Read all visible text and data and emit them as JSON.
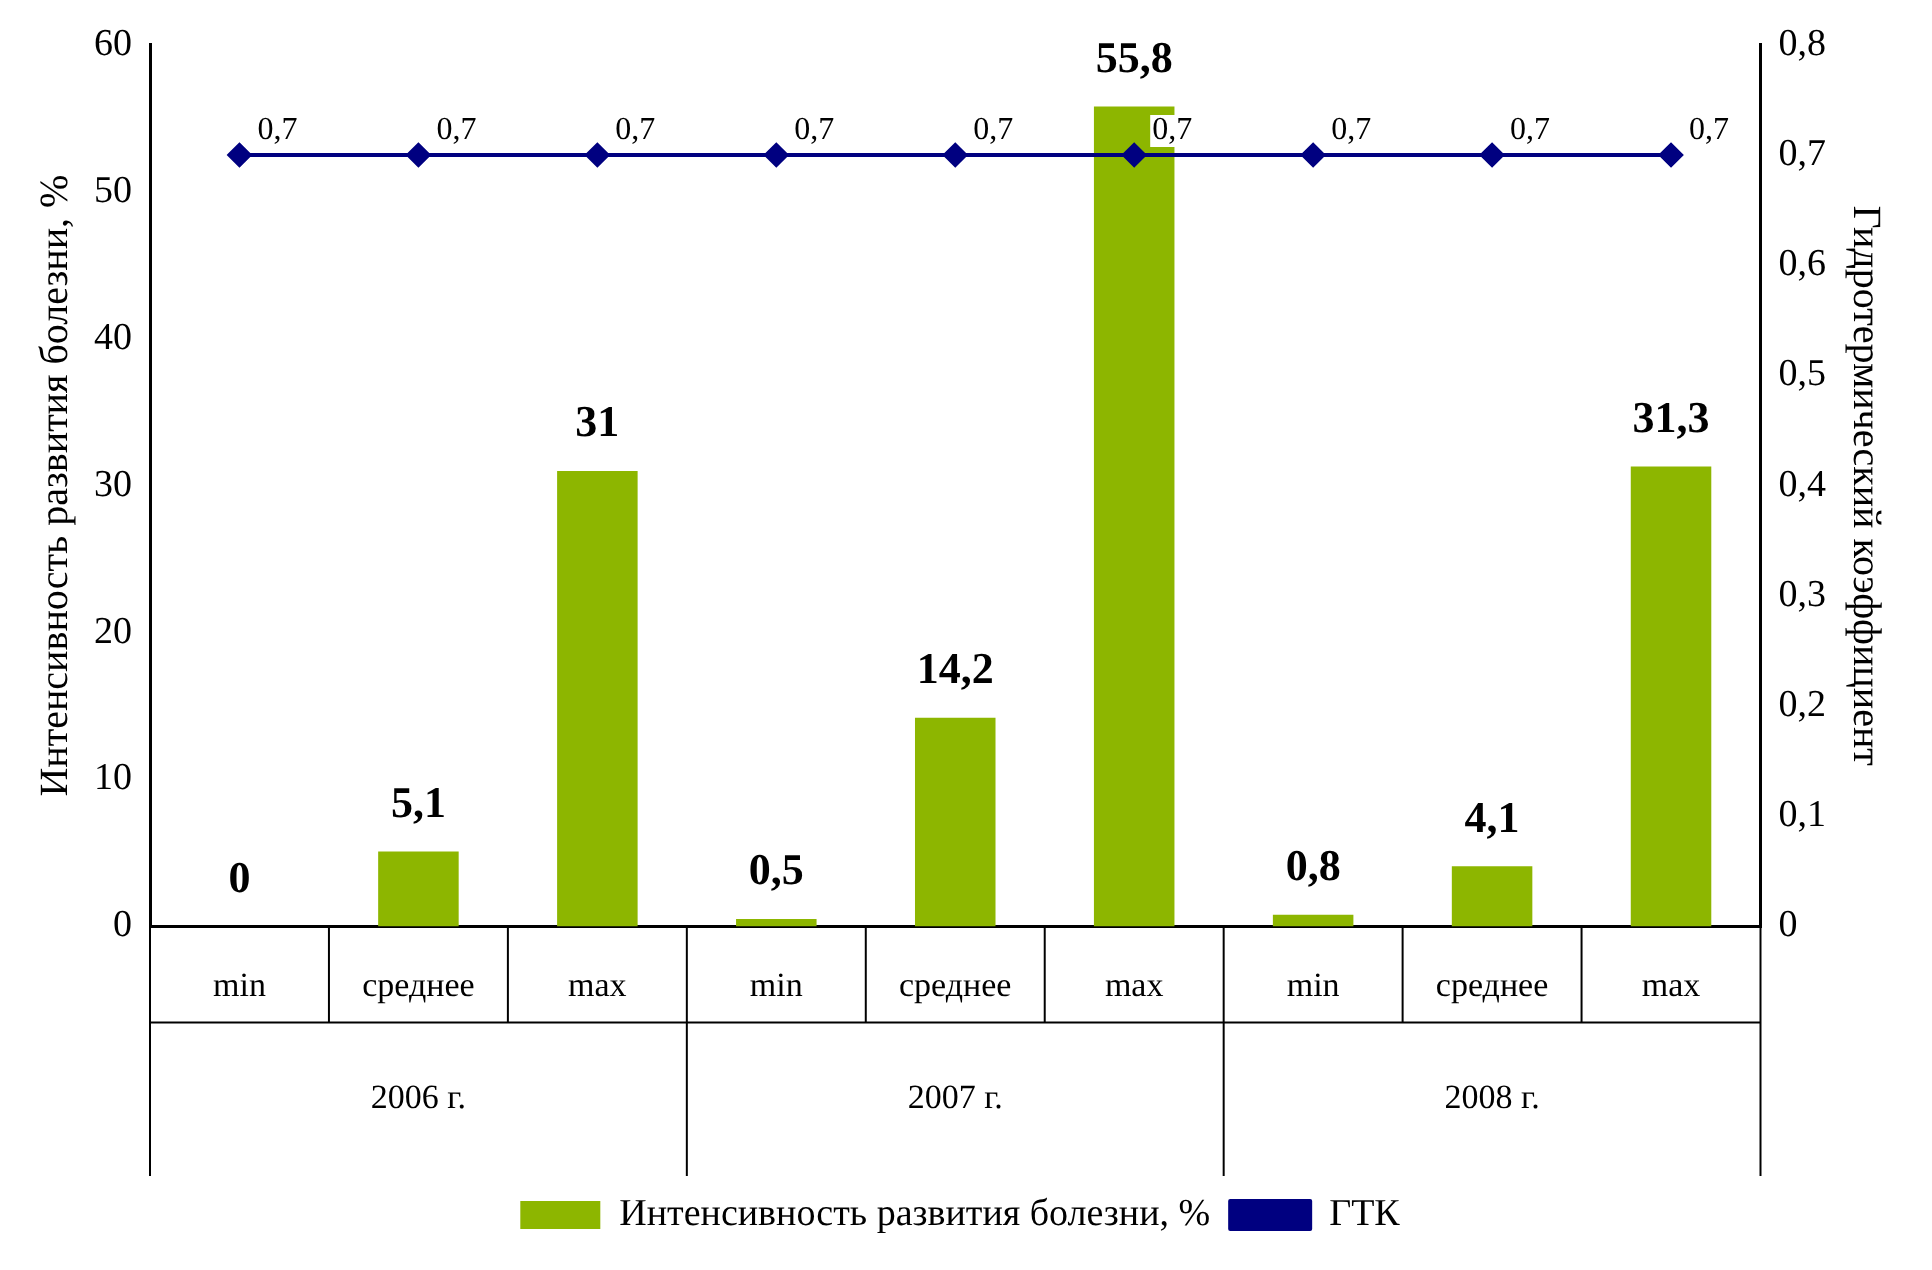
{
  "chart_data": {
    "type": "bar",
    "ylabel": "Интенсивность развития болезни, %",
    "y2label": "Гидротермический коэффициент",
    "categories": [
      "min",
      "среднее",
      "max",
      "min",
      "среднее",
      "max",
      "min",
      "среднее",
      "max"
    ],
    "annotations": [
      "2006 г.",
      "2007 г.",
      "2008 г."
    ],
    "series": [
      {
        "name": "Интенсивность развития болезни, %",
        "color": "#8db600",
        "values": [
          0,
          5.1,
          31,
          0.5,
          14.2,
          55.8,
          0.8,
          4.1,
          31.3
        ],
        "value_labels": [
          "0",
          "5,1",
          "31",
          "0,5",
          "14,2",
          "55,8",
          "0,8",
          "4,1",
          "31,3"
        ]
      },
      {
        "name": "ГТК",
        "type": "line",
        "axis": "y2",
        "color": "#000080",
        "marker": "diamond",
        "values": [
          0.7,
          0.7,
          0.7,
          0.7,
          0.7,
          0.7,
          0.7,
          0.7,
          0.7
        ],
        "value_labels": [
          "0,7",
          "0,7",
          "0,7",
          "0,7",
          "0,7",
          "0,7",
          "0,7",
          "0,7",
          "0,7"
        ]
      }
    ],
    "ylim": [
      0,
      60
    ],
    "yticks": [
      0,
      10,
      20,
      30,
      40,
      50,
      60
    ],
    "y2lim": [
      0,
      0.8
    ],
    "y2ticks": [
      {
        "value": 0,
        "label": "0"
      },
      {
        "value": 0.1,
        "label": "0,1"
      },
      {
        "value": 0.2,
        "label": "0,2"
      },
      {
        "value": 0.3,
        "label": "0,3"
      },
      {
        "value": 0.4,
        "label": "0,4"
      },
      {
        "value": 0.5,
        "label": "0,5"
      },
      {
        "value": 0.6,
        "label": "0,6"
      },
      {
        "value": 0.7,
        "label": "0,7"
      },
      {
        "value": 0.8,
        "label": "0,8"
      }
    ],
    "grid": false,
    "legend": "bottom"
  }
}
